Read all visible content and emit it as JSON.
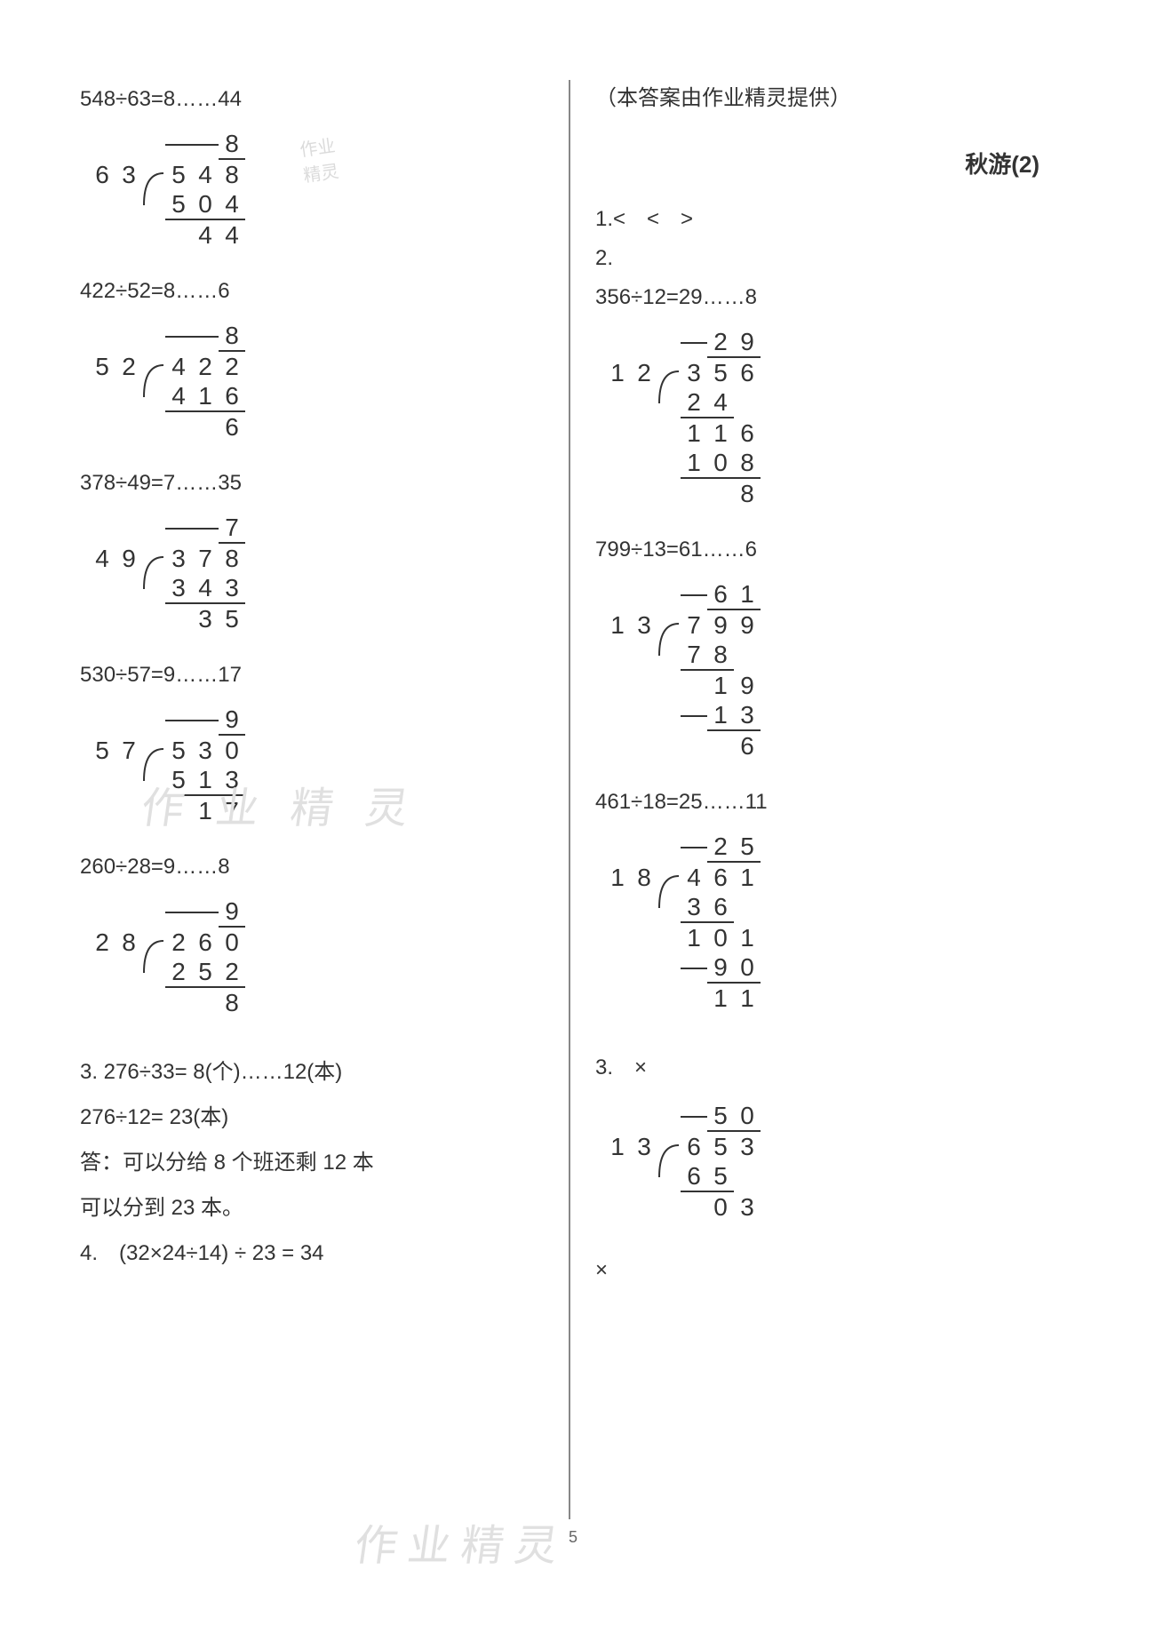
{
  "left": {
    "p1": {
      "eq": "548÷63=8……44",
      "divisor": [
        "6",
        "3"
      ],
      "quotient": [
        "",
        "",
        "8"
      ],
      "dividend": [
        "5",
        "4",
        "8"
      ],
      "steps": [
        {
          "v": [
            "5",
            "0",
            "4"
          ],
          "u": true
        },
        {
          "v": [
            "",
            "4",
            "4"
          ]
        }
      ]
    },
    "p2": {
      "eq": "422÷52=8……6",
      "divisor": [
        "5",
        "2"
      ],
      "quotient": [
        "",
        "",
        "8"
      ],
      "dividend": [
        "4",
        "2",
        "2"
      ],
      "steps": [
        {
          "v": [
            "4",
            "1",
            "6"
          ],
          "u": true
        },
        {
          "v": [
            "",
            "",
            "6"
          ]
        }
      ]
    },
    "p3": {
      "eq": "378÷49=7……35",
      "divisor": [
        "4",
        "9"
      ],
      "quotient": [
        "",
        "",
        "7"
      ],
      "dividend": [
        "3",
        "7",
        "8"
      ],
      "steps": [
        {
          "v": [
            "3",
            "4",
            "3"
          ],
          "u": true
        },
        {
          "v": [
            "",
            "3",
            "5"
          ]
        }
      ]
    },
    "p4": {
      "eq": "530÷57=9……17",
      "divisor": [
        "5",
        "7"
      ],
      "quotient": [
        "",
        "",
        "9"
      ],
      "dividend": [
        "5",
        "3",
        "0"
      ],
      "steps": [
        {
          "v": [
            "5",
            "1",
            "3"
          ],
          "u": true
        },
        {
          "v": [
            "",
            "1",
            "7"
          ]
        }
      ]
    },
    "p5": {
      "eq": "260÷28=9……8",
      "divisor": [
        "2",
        "8"
      ],
      "quotient": [
        "",
        "",
        "9"
      ],
      "dividend": [
        "2",
        "6",
        "0"
      ],
      "steps": [
        {
          "v": [
            "2",
            "5",
            "2"
          ],
          "u": true
        },
        {
          "v": [
            "",
            "",
            "8"
          ]
        }
      ]
    },
    "q3a": "3. 276÷33= 8(个)……12(本)",
    "q3b": "276÷12= 23(本)",
    "q3ans1": "答：可以分给 8 个班还剩 12 本",
    "q3ans2": "可以分到 23 本。",
    "q4": "4.　(32×24÷14) ÷ 23 = 34"
  },
  "right": {
    "header": "（本答案由作业精灵提供）",
    "title": "秋游(2)",
    "q1": "1.<　<　>",
    "q2label": "2.",
    "p1": {
      "eq": "356÷12=29……8",
      "divisor": [
        "1",
        "2"
      ],
      "quotient": [
        "",
        "2",
        "9"
      ],
      "dividend": [
        "3",
        "5",
        "6"
      ],
      "steps": [
        {
          "v": [
            "2",
            "4",
            ""
          ],
          "u": true,
          "uend": 2
        },
        {
          "v": [
            "1",
            "1",
            "6"
          ]
        },
        {
          "v": [
            "1",
            "0",
            "8"
          ],
          "u": true
        },
        {
          "v": [
            "",
            "",
            "8"
          ]
        }
      ]
    },
    "p2": {
      "eq": "799÷13=61……6",
      "divisor": [
        "1",
        "3"
      ],
      "quotient": [
        "",
        "6",
        "1"
      ],
      "dividend": [
        "7",
        "9",
        "9"
      ],
      "steps": [
        {
          "v": [
            "7",
            "8",
            ""
          ],
          "u": true,
          "uend": 2
        },
        {
          "v": [
            "",
            "1",
            "9"
          ]
        },
        {
          "v": [
            "",
            "1",
            "3"
          ],
          "u": true
        },
        {
          "v": [
            "",
            "",
            "6"
          ]
        }
      ]
    },
    "p3": {
      "eq": "461÷18=25……11",
      "divisor": [
        "1",
        "8"
      ],
      "quotient": [
        "",
        "2",
        "5"
      ],
      "dividend": [
        "4",
        "6",
        "1"
      ],
      "steps": [
        {
          "v": [
            "3",
            "6",
            ""
          ],
          "u": true,
          "uend": 2
        },
        {
          "v": [
            "1",
            "0",
            "1"
          ]
        },
        {
          "v": [
            "",
            "9",
            "0"
          ],
          "u": true
        },
        {
          "v": [
            "",
            "1",
            "1"
          ]
        }
      ]
    },
    "q3label": "3.　×",
    "p4": {
      "eq": "",
      "divisor": [
        "1",
        "3"
      ],
      "quotient": [
        "",
        "5",
        "0"
      ],
      "dividend": [
        "6",
        "5",
        "3"
      ],
      "steps": [
        {
          "v": [
            "6",
            "5",
            ""
          ],
          "u": true,
          "uend": 2
        },
        {
          "v": [
            "",
            "0",
            "3"
          ]
        }
      ]
    },
    "cross": "×"
  },
  "watermarks": {
    "mid": "作 业 精 灵",
    "bottom": "作业精灵",
    "stamp_l1": "作业",
    "stamp_l2": "精灵"
  },
  "page_num": "5"
}
